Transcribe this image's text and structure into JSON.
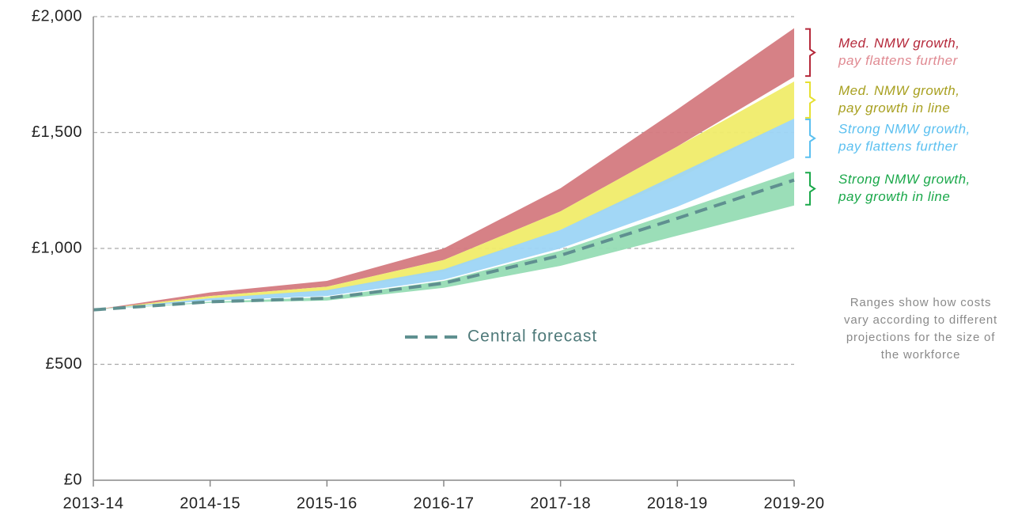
{
  "chart_data": {
    "type": "area",
    "categories": [
      "2013-14",
      "2014-15",
      "2015-16",
      "2016-17",
      "2017-18",
      "2018-19",
      "2019-20"
    ],
    "ylim": [
      0,
      2000
    ],
    "yticks": [
      {
        "value": 0,
        "label": "£0"
      },
      {
        "value": 500,
        "label": "£500"
      },
      {
        "value": 1000,
        "label": "£1,000"
      },
      {
        "value": 1500,
        "label": "£1,500"
      },
      {
        "value": 2000,
        "label": "£2,000"
      }
    ],
    "grid": true,
    "series": [
      {
        "type": "range",
        "name": [
          "Med. NMW growth,",
          "pay flattens further"
        ],
        "color": "#d47a80",
        "label_color": [
          "#b5283a",
          "#e08a92"
        ],
        "bracket_color": "#b5283a",
        "high": [
          735,
          810,
          860,
          1000,
          1260,
          1600,
          1950
        ],
        "low": [
          735,
          795,
          835,
          950,
          1160,
          1440,
          1740
        ]
      },
      {
        "type": "range",
        "name": [
          "Med. NMW growth,",
          "pay growth in line"
        ],
        "color": "#f0ec6a",
        "label_color": [
          "#a8a020",
          "#a8a020"
        ],
        "bracket_color": "#e6e030",
        "high": [
          735,
          795,
          835,
          950,
          1160,
          1440,
          1720
        ],
        "low": [
          735,
          785,
          815,
          900,
          1080,
          1300,
          1560
        ]
      },
      {
        "type": "range",
        "name": [
          "Strong NMW growth,",
          "pay flattens further"
        ],
        "color": "#9dd5f5",
        "label_color": [
          "#5bc0f0",
          "#5bc0f0"
        ],
        "bracket_color": "#5bc0f0",
        "high": [
          735,
          785,
          820,
          910,
          1080,
          1320,
          1560
        ],
        "low": [
          735,
          775,
          795,
          865,
          1000,
          1180,
          1390
        ]
      },
      {
        "type": "range",
        "name": [
          "Strong NMW growth,",
          "pay growth in line"
        ],
        "color": "#96dcb4",
        "label_color": [
          "#1aa84a",
          "#1aa84a"
        ],
        "bracket_color": "#1aa84a",
        "high": [
          735,
          770,
          790,
          860,
          990,
          1160,
          1330
        ],
        "low": [
          735,
          765,
          775,
          830,
          925,
          1055,
          1185
        ]
      },
      {
        "type": "line",
        "name": "Central forecast",
        "color": "#5f9090",
        "values": [
          735,
          770,
          785,
          850,
          970,
          1130,
          1295
        ]
      }
    ],
    "annotation": "Ranges show how costs vary according to different projections for the size of the workforce"
  }
}
